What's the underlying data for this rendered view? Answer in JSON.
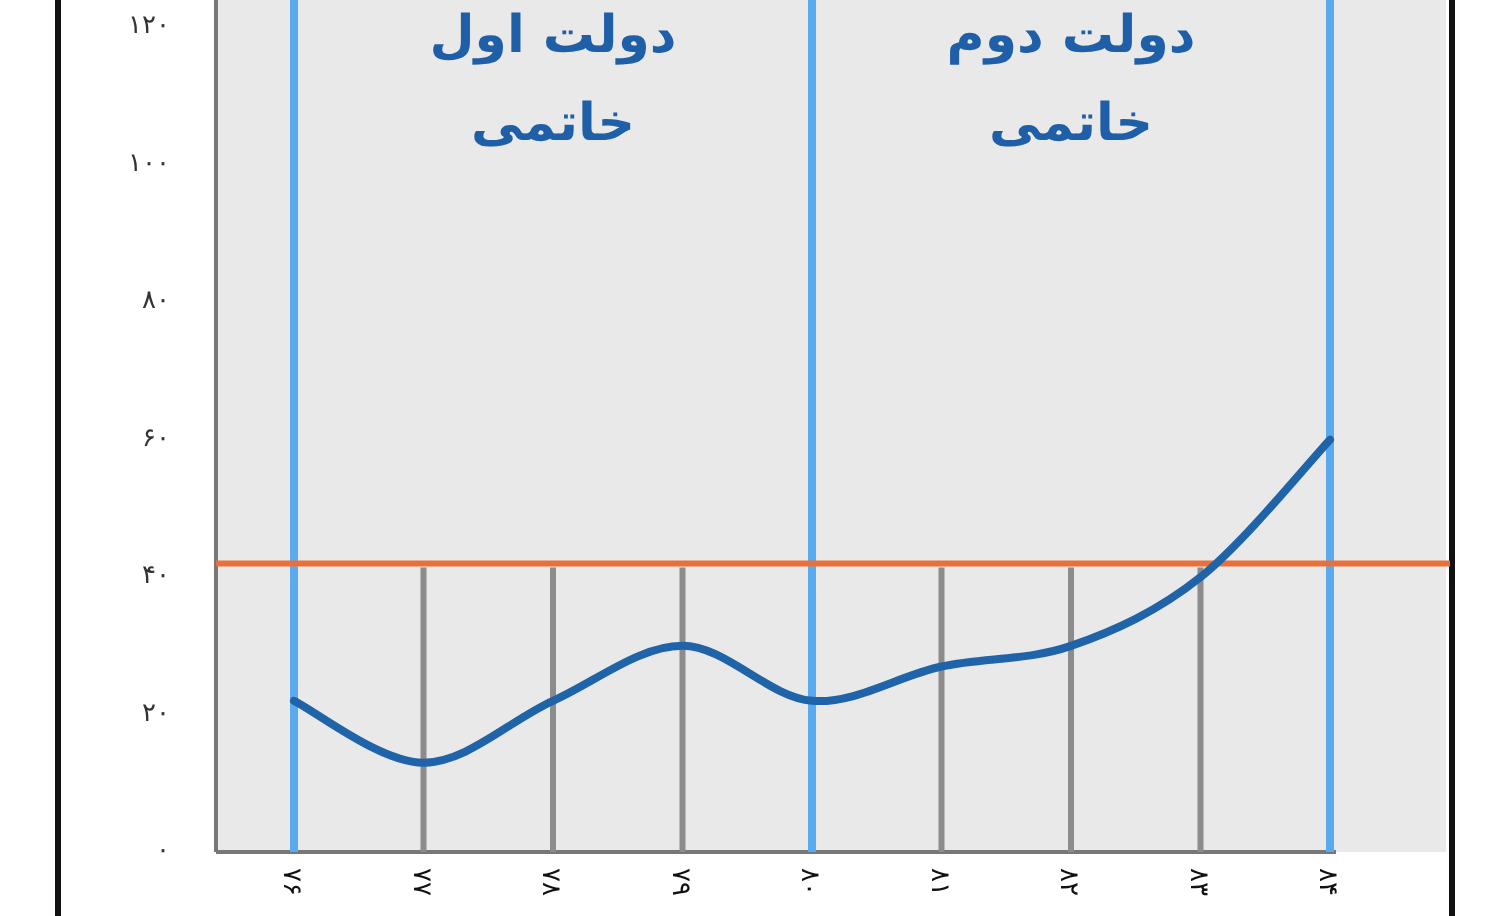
{
  "chart_data": {
    "type": "line",
    "categories": [
      "۷۶",
      "۷۷",
      "۷۸",
      "۷۹",
      "۸۰",
      "۸۱",
      "۸۲",
      "۸۳",
      "۸۴"
    ],
    "series": [
      {
        "color": "#1f63a8",
        "values": [
          22,
          13,
          22,
          30,
          22,
          27,
          30,
          40,
          60
        ]
      }
    ],
    "ylim": [
      0,
      124
    ],
    "yticks": [
      {
        "value": 0,
        "label": "۰"
      },
      {
        "value": 20,
        "label": "۲۰"
      },
      {
        "value": 40,
        "label": "۴۰"
      },
      {
        "value": 60,
        "label": "۶۰"
      },
      {
        "value": 80,
        "label": "۸۰"
      },
      {
        "value": 100,
        "label": "۱۰۰"
      },
      {
        "value": 120,
        "label": "۱۲۰"
      }
    ],
    "ref_lines": [
      {
        "axis": "x",
        "value": "۷۶",
        "color": "#5aaaf0"
      },
      {
        "axis": "x",
        "value": "۸۰",
        "color": "#5aaaf0"
      },
      {
        "axis": "x",
        "value": "۸۴",
        "color": "#5aaaf0"
      },
      {
        "axis": "y",
        "value": 42,
        "color": "#e8703a"
      },
      {
        "axis": "x",
        "value": "۷۷",
        "color": "#8c8c8c"
      },
      {
        "axis": "x",
        "value": "۷۸",
        "color": "#8c8c8c"
      },
      {
        "axis": "x",
        "value": "۷۹",
        "color": "#8c8c8c"
      },
      {
        "axis": "x",
        "value": "۸۱",
        "color": "#8c8c8c"
      },
      {
        "axis": "x",
        "value": "۸۲",
        "color": "#8c8c8c"
      },
      {
        "axis": "x",
        "value": "۸۳",
        "color": "#8c8c8c"
      }
    ],
    "annotations": [
      "دولت اول\nخاتمی",
      "دولت دوم\nخاتمی"
    ],
    "marker": "none",
    "line_style": "solid"
  }
}
